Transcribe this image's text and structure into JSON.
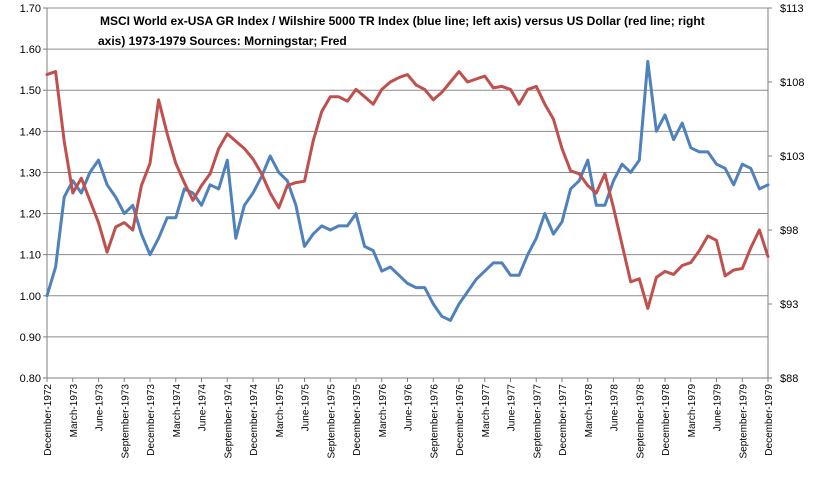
{
  "chart_data": {
    "type": "line",
    "title_lines": [
      "MSCI World ex-USA GR Index /  Wilshire 5000 TR Index (blue line; left axis) versus US Dollar (red line;  right",
      "axis) 1973-1979   Sources:  Morningstar; Fred"
    ],
    "left_axis": {
      "min": 0.8,
      "max": 1.7,
      "ticks": [
        "0.80",
        "0.90",
        "1.00",
        "1.10",
        "1.20",
        "1.30",
        "1.40",
        "1.50",
        "1.60",
        "1.70"
      ]
    },
    "right_axis": {
      "min": 88,
      "max": 113,
      "ticks": [
        "$88",
        "$93",
        "$98",
        "$103",
        "$108",
        "$113"
      ]
    },
    "x_tick_labels": [
      "December-1972",
      "March-1973",
      "June-1973",
      "September-1973",
      "December-1973",
      "March-1974",
      "June-1974",
      "September-1974",
      "December-1974",
      "March-1975",
      "June-1975",
      "September-1975",
      "December-1975",
      "March-1976",
      "June-1976",
      "September-1976",
      "December-1976",
      "March-1977",
      "June-1977",
      "September-1977",
      "December-1977",
      "March-1978",
      "June-1978",
      "September-1978",
      "December-1978",
      "March-1979",
      "June-1979",
      "September-1979",
      "December-1979"
    ],
    "grid": "horizontal",
    "legend": "none",
    "series": [
      {
        "axis": "left",
        "color": "#4f81bd",
        "values": [
          1.0,
          1.07,
          1.24,
          1.28,
          1.25,
          1.3,
          1.33,
          1.27,
          1.24,
          1.2,
          1.22,
          1.15,
          1.1,
          1.14,
          1.19,
          1.19,
          1.26,
          1.25,
          1.22,
          1.27,
          1.26,
          1.33,
          1.14,
          1.22,
          1.25,
          1.29,
          1.34,
          1.3,
          1.28,
          1.22,
          1.12,
          1.15,
          1.17,
          1.16,
          1.17,
          1.17,
          1.2,
          1.12,
          1.11,
          1.06,
          1.07,
          1.05,
          1.03,
          1.02,
          1.02,
          0.98,
          0.95,
          0.94,
          0.98,
          1.01,
          1.04,
          1.06,
          1.08,
          1.08,
          1.05,
          1.05,
          1.1,
          1.14,
          1.2,
          1.15,
          1.18,
          1.26,
          1.28,
          1.33,
          1.22,
          1.22,
          1.28,
          1.32,
          1.3,
          1.33,
          1.57,
          1.4,
          1.44,
          1.38,
          1.42,
          1.36,
          1.35,
          1.35,
          1.32,
          1.31,
          1.27,
          1.32,
          1.31,
          1.26,
          1.27
        ]
      },
      {
        "axis": "right",
        "color": "#c0504d",
        "values": [
          108.5,
          108.7,
          104.0,
          100.5,
          101.5,
          100.0,
          98.5,
          96.5,
          98.2,
          98.5,
          98.0,
          101.0,
          102.5,
          106.8,
          104.5,
          102.5,
          101.2,
          100.0,
          101.0,
          101.8,
          103.5,
          104.5,
          104.0,
          103.5,
          102.8,
          101.8,
          100.5,
          99.5,
          101.0,
          101.2,
          101.3,
          104.0,
          106.0,
          107.0,
          107.0,
          106.7,
          107.5,
          107.0,
          106.5,
          107.5,
          108.0,
          108.3,
          108.5,
          107.8,
          107.5,
          106.8,
          107.3,
          108.0,
          108.7,
          108.0,
          108.2,
          108.4,
          107.6,
          107.7,
          107.5,
          106.5,
          107.5,
          107.7,
          106.5,
          105.5,
          103.5,
          102.0,
          101.8,
          101.0,
          100.5,
          101.8,
          99.5,
          97.0,
          94.5,
          94.7,
          92.7,
          94.8,
          95.2,
          95.0,
          95.6,
          95.8,
          96.6,
          97.6,
          97.3,
          94.9,
          95.3,
          95.4,
          96.8,
          98.0,
          96.2
        ]
      }
    ]
  }
}
